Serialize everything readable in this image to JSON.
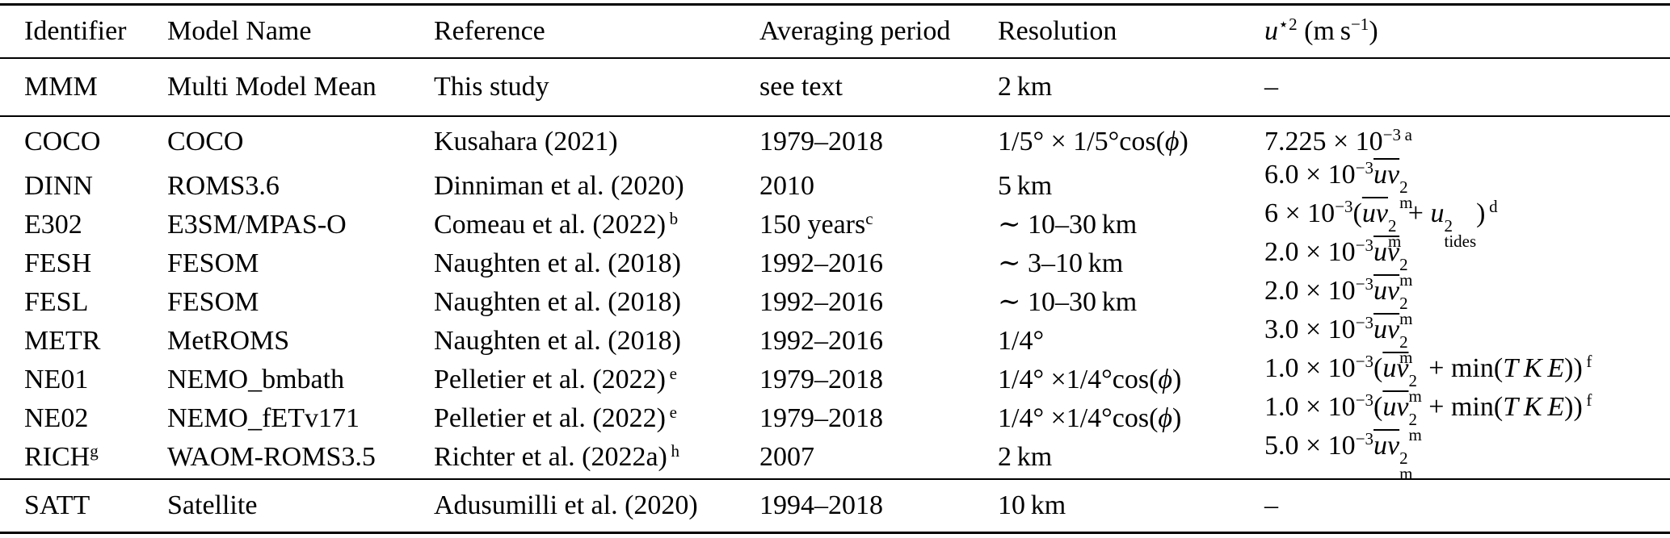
{
  "colors": {
    "text": "#000000",
    "background": "#ffffff",
    "rule": "#000000"
  },
  "table": {
    "headers": [
      [
        {
          "k": "t",
          "v": "Identifier"
        }
      ],
      [
        {
          "k": "t",
          "v": "Model Name"
        }
      ],
      [
        {
          "k": "t",
          "v": "Reference"
        }
      ],
      [
        {
          "k": "t",
          "v": "Averaging period"
        }
      ],
      [
        {
          "k": "t",
          "v": "Resolution"
        }
      ],
      [
        {
          "k": "i",
          "v": "u"
        },
        {
          "k": "sup",
          "v": "⋆2"
        },
        {
          "k": "t",
          "v": " (m s"
        },
        {
          "k": "sup",
          "v": "−1"
        },
        {
          "k": "t",
          "v": ")"
        }
      ]
    ],
    "groups": [
      {
        "name": "mean",
        "rows": [
          {
            "cells": [
              [
                {
                  "k": "t",
                  "v": "MMM"
                }
              ],
              [
                {
                  "k": "t",
                  "v": "Multi Model Mean"
                }
              ],
              [
                {
                  "k": "t",
                  "v": "This study"
                }
              ],
              [
                {
                  "k": "t",
                  "v": "see text"
                }
              ],
              [
                {
                  "k": "t",
                  "v": "2 km"
                }
              ],
              [
                {
                  "k": "t",
                  "v": "–"
                }
              ]
            ]
          }
        ]
      },
      {
        "name": "models",
        "rows": [
          {
            "cells": [
              [
                {
                  "k": "t",
                  "v": "COCO"
                }
              ],
              [
                {
                  "k": "t",
                  "v": "COCO"
                }
              ],
              [
                {
                  "k": "t",
                  "v": "Kusahara (2021)"
                }
              ],
              [
                {
                  "k": "t",
                  "v": "1979–2018"
                }
              ],
              [
                {
                  "k": "t",
                  "v": "1/5° × 1/5°cos("
                },
                {
                  "k": "i",
                  "v": "ϕ"
                },
                {
                  "k": "t",
                  "v": ")"
                }
              ],
              [
                {
                  "k": "t",
                  "v": "7.225 × 10"
                },
                {
                  "k": "sup",
                  "v": "−3"
                },
                {
                  "k": "fn",
                  "v": "a"
                }
              ]
            ]
          },
          {
            "cells": [
              [
                {
                  "k": "t",
                  "v": "DINN"
                }
              ],
              [
                {
                  "k": "t",
                  "v": "ROMS3.6"
                }
              ],
              [
                {
                  "k": "t",
                  "v": "Dinniman et al. (2020)"
                }
              ],
              [
                {
                  "k": "t",
                  "v": "2010"
                }
              ],
              [
                {
                  "k": "t",
                  "v": "5 km"
                }
              ],
              [
                {
                  "k": "t",
                  "v": "6.0 × 10"
                },
                {
                  "k": "sup",
                  "v": "−3"
                },
                {
                  "k": "ol",
                  "v": "uv"
                },
                {
                  "k": "ss",
                  "v": [
                    "2",
                    "m"
                  ]
                }
              ]
            ]
          },
          {
            "cells": [
              [
                {
                  "k": "t",
                  "v": "E302"
                }
              ],
              [
                {
                  "k": "t",
                  "v": "E3SM/MPAS-O"
                }
              ],
              [
                {
                  "k": "t",
                  "v": "Comeau et al. (2022)"
                },
                {
                  "k": "fn",
                  "v": "b"
                }
              ],
              [
                {
                  "k": "t",
                  "v": "150 years"
                },
                {
                  "k": "sup",
                  "v": "c"
                }
              ],
              [
                {
                  "k": "t",
                  "v": "∼ 10–30 km"
                }
              ],
              [
                {
                  "k": "t",
                  "v": "6 × 10"
                },
                {
                  "k": "sup",
                  "v": "−3"
                },
                {
                  "k": "t",
                  "v": "("
                },
                {
                  "k": "ol",
                  "v": "uv"
                },
                {
                  "k": "ss",
                  "v": [
                    "2",
                    "m"
                  ]
                },
                {
                  "k": "t",
                  "v": " + "
                },
                {
                  "k": "i",
                  "v": "u"
                },
                {
                  "k": "ss",
                  "v": [
                    "2",
                    "tides"
                  ]
                },
                {
                  "k": "t",
                  "v": ")"
                },
                {
                  "k": "fn",
                  "v": "d"
                }
              ]
            ]
          },
          {
            "cells": [
              [
                {
                  "k": "t",
                  "v": "FESH"
                }
              ],
              [
                {
                  "k": "t",
                  "v": "FESOM"
                }
              ],
              [
                {
                  "k": "t",
                  "v": "Naughten et al. (2018)"
                }
              ],
              [
                {
                  "k": "t",
                  "v": "1992–2016"
                }
              ],
              [
                {
                  "k": "t",
                  "v": "∼ 3–10 km"
                }
              ],
              [
                {
                  "k": "t",
                  "v": "2.0 × 10"
                },
                {
                  "k": "sup",
                  "v": "−3"
                },
                {
                  "k": "ol",
                  "v": "uv"
                },
                {
                  "k": "ss",
                  "v": [
                    "2",
                    "m"
                  ]
                }
              ]
            ]
          },
          {
            "cells": [
              [
                {
                  "k": "t",
                  "v": "FESL"
                }
              ],
              [
                {
                  "k": "t",
                  "v": "FESOM"
                }
              ],
              [
                {
                  "k": "t",
                  "v": "Naughten et al. (2018)"
                }
              ],
              [
                {
                  "k": "t",
                  "v": "1992–2016"
                }
              ],
              [
                {
                  "k": "t",
                  "v": "∼ 10–30 km"
                }
              ],
              [
                {
                  "k": "t",
                  "v": "2.0 × 10"
                },
                {
                  "k": "sup",
                  "v": "−3"
                },
                {
                  "k": "ol",
                  "v": "uv"
                },
                {
                  "k": "ss",
                  "v": [
                    "2",
                    "m"
                  ]
                }
              ]
            ]
          },
          {
            "cells": [
              [
                {
                  "k": "t",
                  "v": "METR"
                }
              ],
              [
                {
                  "k": "t",
                  "v": "MetROMS"
                }
              ],
              [
                {
                  "k": "t",
                  "v": "Naughten et al. (2018)"
                }
              ],
              [
                {
                  "k": "t",
                  "v": "1992–2016"
                }
              ],
              [
                {
                  "k": "t",
                  "v": "1/4°"
                }
              ],
              [
                {
                  "k": "t",
                  "v": "3.0 × 10"
                },
                {
                  "k": "sup",
                  "v": "−3"
                },
                {
                  "k": "ol",
                  "v": "uv"
                },
                {
                  "k": "ss",
                  "v": [
                    "2",
                    "m"
                  ]
                }
              ]
            ]
          },
          {
            "cells": [
              [
                {
                  "k": "t",
                  "v": "NE01"
                }
              ],
              [
                {
                  "k": "t",
                  "v": "NEMO_bmbath"
                }
              ],
              [
                {
                  "k": "t",
                  "v": "Pelletier et al. (2022)"
                },
                {
                  "k": "fn",
                  "v": "e"
                }
              ],
              [
                {
                  "k": "t",
                  "v": "1979–2018"
                }
              ],
              [
                {
                  "k": "t",
                  "v": "1/4° ×1/4°cos("
                },
                {
                  "k": "i",
                  "v": "ϕ"
                },
                {
                  "k": "t",
                  "v": ")"
                }
              ],
              [
                {
                  "k": "t",
                  "v": "1.0 × 10"
                },
                {
                  "k": "sup",
                  "v": "−3"
                },
                {
                  "k": "t",
                  "v": "("
                },
                {
                  "k": "ol",
                  "v": "uv"
                },
                {
                  "k": "ss",
                  "v": [
                    "2",
                    "m"
                  ]
                },
                {
                  "k": "t",
                  "v": " + min("
                },
                {
                  "k": "i",
                  "v": "T K E"
                },
                {
                  "k": "t",
                  "v": "))"
                },
                {
                  "k": "fn",
                  "v": "f"
                }
              ]
            ]
          },
          {
            "cells": [
              [
                {
                  "k": "t",
                  "v": "NE02"
                }
              ],
              [
                {
                  "k": "t",
                  "v": "NEMO_fETv171"
                }
              ],
              [
                {
                  "k": "t",
                  "v": "Pelletier et al. (2022)"
                },
                {
                  "k": "fn",
                  "v": "e"
                }
              ],
              [
                {
                  "k": "t",
                  "v": "1979–2018"
                }
              ],
              [
                {
                  "k": "t",
                  "v": "1/4° ×1/4°cos("
                },
                {
                  "k": "i",
                  "v": "ϕ"
                },
                {
                  "k": "t",
                  "v": ")"
                }
              ],
              [
                {
                  "k": "t",
                  "v": "1.0 × 10"
                },
                {
                  "k": "sup",
                  "v": "−3"
                },
                {
                  "k": "t",
                  "v": "("
                },
                {
                  "k": "ol",
                  "v": "uv"
                },
                {
                  "k": "ss",
                  "v": [
                    "2",
                    "m"
                  ]
                },
                {
                  "k": "t",
                  "v": " + min("
                },
                {
                  "k": "i",
                  "v": "T K E"
                },
                {
                  "k": "t",
                  "v": "))"
                },
                {
                  "k": "fn",
                  "v": "f"
                }
              ]
            ]
          },
          {
            "cells": [
              [
                {
                  "k": "t",
                  "v": "RICH"
                },
                {
                  "k": "sup",
                  "v": "g"
                }
              ],
              [
                {
                  "k": "t",
                  "v": "WAOM-ROMS3.5"
                }
              ],
              [
                {
                  "k": "t",
                  "v": "Richter et al. (2022a)"
                },
                {
                  "k": "fn",
                  "v": "h"
                }
              ],
              [
                {
                  "k": "t",
                  "v": "2007"
                }
              ],
              [
                {
                  "k": "t",
                  "v": "2 km"
                }
              ],
              [
                {
                  "k": "t",
                  "v": "5.0 × 10"
                },
                {
                  "k": "sup",
                  "v": "−3"
                },
                {
                  "k": "ol",
                  "v": "uv"
                },
                {
                  "k": "ss",
                  "v": [
                    "2",
                    "m"
                  ]
                }
              ]
            ]
          }
        ]
      },
      {
        "name": "satellite",
        "rows": [
          {
            "cells": [
              [
                {
                  "k": "t",
                  "v": "SATT"
                }
              ],
              [
                {
                  "k": "t",
                  "v": "Satellite"
                }
              ],
              [
                {
                  "k": "t",
                  "v": "Adusumilli et al. (2020)"
                }
              ],
              [
                {
                  "k": "t",
                  "v": "1994–2018"
                }
              ],
              [
                {
                  "k": "t",
                  "v": "10 km"
                }
              ],
              [
                {
                  "k": "t",
                  "v": "–"
                }
              ]
            ]
          }
        ]
      }
    ]
  }
}
